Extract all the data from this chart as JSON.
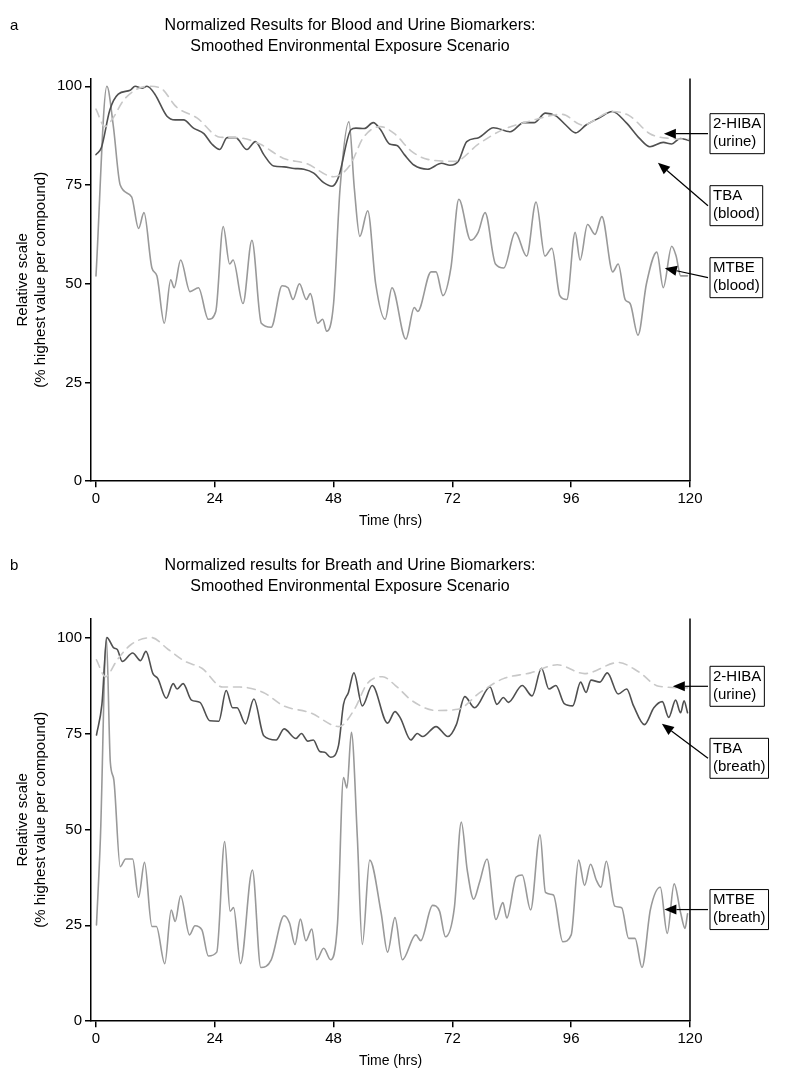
{
  "chart_data": [
    {
      "type": "line",
      "title": "Normalized Results for Blood and Urine Biomarkers:",
      "subtitle": "Smoothed Environmental Exposure Scenario",
      "xlabel": "Time (hrs)",
      "ylabel": "Relative scale\n(% highest value per compound)",
      "annotations": [
        "a"
      ],
      "xlim": [
        -1,
        120
      ],
      "xticks": [
        0,
        24,
        48,
        72,
        96,
        120
      ],
      "ylim": [
        0,
        102
      ],
      "yticks": [
        0,
        25,
        50,
        75,
        100
      ],
      "grid": false,
      "legend": false,
      "marker": "none",
      "series": [
        {
          "name": "2-HIBA (urine)",
          "color": "#c8c8c8",
          "line_style": "dashed",
          "x": [
            0,
            1.8,
            3.2,
            5.6,
            8.3,
            10.7,
            13,
            16.3,
            20.4,
            25.1,
            28.4,
            33.1,
            37.8,
            42.6,
            48,
            51.3,
            54,
            57.4,
            60.3,
            63.7,
            67,
            72.5,
            77.3,
            82,
            87.4,
            94.2,
            98.2,
            104.4,
            107.8,
            111.9,
            115.9,
            119.7
          ],
          "values": [
            94.2,
            89.8,
            91.5,
            96.5,
            99.3,
            100,
            99.6,
            94.7,
            92,
            87.1,
            87,
            85.4,
            81.8,
            80.4,
            77.1,
            80,
            87,
            89.8,
            88,
            83.6,
            81.5,
            81,
            85.4,
            88.9,
            91.1,
            92.9,
            90.2,
            93.6,
            92.5,
            88,
            86.8,
            86.6
          ]
        },
        {
          "name": "TBA (blood)",
          "color": "#505050",
          "line_style": "solid",
          "x": [
            0,
            1.1,
            2.8,
            4.5,
            6.9,
            7.9,
            9.3,
            10.3,
            11.9,
            14.3,
            16,
            17.7,
            19.7,
            21.8,
            23.4,
            25,
            26.5,
            28.2,
            30.5,
            32.2,
            33.9,
            35.9,
            38,
            40,
            42,
            44,
            46,
            47.7,
            49,
            51.5,
            52.5,
            54.2,
            56,
            57.5,
            59.3,
            60.8,
            62.3,
            64.3,
            67,
            69.8,
            71.5,
            73.2,
            74.9,
            77.3,
            80.3,
            83.7,
            86.4,
            88.5,
            90.8,
            92.9,
            94.9,
            96.9,
            99,
            101.7,
            104.3,
            107.1,
            109.8,
            111.9,
            114.6,
            116.3,
            118,
            119.7
          ],
          "values": [
            82.7,
            84.5,
            94,
            98,
            99,
            100,
            99.5,
            100,
            98,
            92.5,
            91.5,
            91.5,
            89.4,
            88,
            85.4,
            84,
            87,
            87,
            84,
            86,
            82.7,
            79.8,
            79.6,
            79.2,
            79,
            78,
            75.6,
            74.7,
            77,
            89,
            89.4,
            89.3,
            90.8,
            89,
            85.4,
            85,
            82.7,
            80,
            79,
            80.5,
            80,
            81,
            86,
            87,
            89.5,
            88.5,
            90.8,
            90.8,
            93.2,
            92.5,
            90.2,
            88.2,
            90.2,
            92,
            93.6,
            90.8,
            86.8,
            84.7,
            85.8,
            85.4,
            86.8,
            86.3
          ]
        },
        {
          "name": "MTBE (blood)",
          "color": "#999999",
          "line_style": "solid",
          "x": [
            0,
            2.2,
            3.5,
            4.9,
            7.2,
            8.6,
            9.7,
            11.3,
            12.3,
            13.8,
            15.1,
            15.8,
            17.1,
            19,
            20.7,
            22.7,
            24.2,
            25.7,
            27,
            27.7,
            29.7,
            31.5,
            33.4,
            35.4,
            37.6,
            38.8,
            39.8,
            41.1,
            42.5,
            43.3,
            44.8,
            45.8,
            46.6,
            48,
            49.3,
            51.1,
            52.2,
            53.3,
            54.9,
            56.5,
            58.4,
            59.8,
            62.6,
            64.3,
            65,
            67.7,
            68.7,
            70.1,
            71.7,
            73.3,
            75.7,
            77.2,
            78.6,
            80.7,
            82.4,
            84.7,
            87,
            88.9,
            90.7,
            92.1,
            93.7,
            95.1,
            96.8,
            97.8,
            99.3,
            100.8,
            102.2,
            104.4,
            105.5,
            106.9,
            107.9,
            109.5,
            111.2,
            113.3,
            114.6,
            116.3,
            117.2,
            118.1,
            119.5
          ],
          "values": [
            52,
            100,
            90,
            75,
            72,
            64,
            68,
            54,
            52,
            40,
            51,
            49,
            56,
            48,
            49,
            41,
            43,
            64.5,
            55,
            56,
            45,
            61,
            40,
            39,
            49.5,
            49,
            46,
            50,
            46,
            47.5,
            40,
            41,
            38,
            45,
            74,
            91,
            74,
            62,
            68.5,
            50,
            41,
            49,
            36,
            44,
            43,
            53,
            53,
            47,
            54,
            71.4,
            61,
            63,
            68,
            55,
            54,
            63,
            57,
            70.7,
            57,
            59,
            47,
            46,
            63,
            56,
            65,
            62.5,
            67,
            53,
            55,
            46,
            45,
            37,
            50,
            58,
            49,
            59.5,
            57,
            52,
            52
          ]
        }
      ]
    },
    {
      "type": "line",
      "title": "Normalized results for Breath and Urine Biomarkers:",
      "subtitle": "Smoothed Environmental Exposure Scenario",
      "xlabel": "Time (hrs)",
      "ylabel": "Relative scale\n(% highest value per compound)",
      "annotations": [
        "b"
      ],
      "xlim": [
        -1,
        120
      ],
      "xticks": [
        0,
        24,
        48,
        72,
        96,
        120
      ],
      "ylim": [
        0,
        105
      ],
      "yticks": [
        0,
        25,
        50,
        75,
        100
      ],
      "grid": false,
      "legend": false,
      "marker": "none",
      "series": [
        {
          "name": "2-HIBA (urine)",
          "color": "#c8c8c8",
          "line_style": "dashed",
          "x": [
            0.1,
            1.9,
            4.3,
            7.1,
            11.2,
            14.6,
            18,
            21.4,
            25.6,
            29,
            33.8,
            37.9,
            43.3,
            49.1,
            52.2,
            54.8,
            57.9,
            60.5,
            63.9,
            68.7,
            73.1,
            77.6,
            82.3,
            87.8,
            93.2,
            98.7,
            105.5,
            109.6,
            113.7,
            119.5
          ],
          "values": [
            94.2,
            89.8,
            94.2,
            98.2,
            100,
            96.9,
            93.8,
            92,
            87.1,
            87.1,
            85.7,
            82.2,
            80.4,
            76.8,
            81.3,
            88,
            89.8,
            87.5,
            83.5,
            81,
            81.3,
            85.7,
            89.3,
            90.8,
            92.9,
            90.6,
            93.5,
            91.1,
            87.3,
            86.9
          ]
        },
        {
          "name": "TBA (breath)",
          "color": "#505050",
          "line_style": "solid",
          "x": [
            0.1,
            1.2,
            2.2,
            3.6,
            4.3,
            5.3,
            7.4,
            9,
            10.1,
            11.5,
            12.5,
            14.2,
            15.6,
            16.4,
            17.6,
            19.3,
            21,
            23,
            24.8,
            26.3,
            27.6,
            28.5,
            30.2,
            31.9,
            33.9,
            36.4,
            38,
            40.4,
            41.5,
            42.8,
            43.9,
            45.2,
            46.2,
            47.4,
            49,
            50,
            51,
            52.1,
            53.8,
            55.8,
            58.9,
            60.4,
            61.5,
            63.6,
            64.9,
            66,
            68.7,
            71.1,
            72.8,
            74.5,
            76.5,
            79.6,
            81,
            82.3,
            83.3,
            86.1,
            88.1,
            90,
            91.5,
            92.9,
            94.6,
            96.3,
            97.9,
            99,
            100,
            101.8,
            103.3,
            105.5,
            107.2,
            108.6,
            110.8,
            112.7,
            114.4,
            115.7,
            117.1,
            118.1,
            118.8,
            119.5
          ],
          "values": [
            74.6,
            82.6,
            100,
            97.3,
            96.9,
            93.8,
            96,
            94,
            96.4,
            90.6,
            89.3,
            84.2,
            88,
            86.6,
            88,
            83.7,
            83.1,
            78.3,
            78.2,
            86.2,
            81.7,
            81.7,
            77.5,
            84,
            74.4,
            73.3,
            76.2,
            73.7,
            75,
            73,
            73.3,
            70.3,
            70.1,
            68.8,
            71.9,
            82.6,
            85.7,
            90.8,
            82.2,
            87.5,
            77.7,
            80.7,
            79,
            73.3,
            75,
            74.2,
            76.8,
            74.2,
            77.3,
            84.6,
            81.7,
            87.1,
            82.6,
            84.4,
            83.1,
            87.5,
            84.8,
            92,
            86.6,
            87.5,
            82.8,
            82.2,
            88.4,
            85.7,
            88.9,
            88.4,
            90.8,
            85.3,
            86.6,
            82.2,
            77.3,
            81.7,
            83.3,
            79.2,
            83.7,
            80.4,
            83.5,
            80.4
          ]
        },
        {
          "name": "MTBE (breath)",
          "color": "#999999",
          "line_style": "solid",
          "x": [
            0.1,
            0.9,
            2.1,
            2.9,
            3.6,
            4.9,
            6,
            7.4,
            8.6,
            9.8,
            11.3,
            12.2,
            13.9,
            15.2,
            16,
            17.1,
            18.9,
            20,
            21.4,
            22.7,
            24.4,
            26,
            27.1,
            27.8,
            29.2,
            31.6,
            33.3,
            35.4,
            38,
            39.1,
            40.2,
            41.3,
            42.4,
            43.6,
            44.6,
            46,
            47.4,
            48.8,
            50,
            50.7,
            51.6,
            52.8,
            53.8,
            55.3,
            57.6,
            58.9,
            60.4,
            61.9,
            64.6,
            65.6,
            68,
            69.4,
            70.6,
            72.4,
            73.8,
            75,
            76.3,
            77.5,
            79,
            80.8,
            82.2,
            83,
            84.9,
            86.1,
            87.8,
            89.7,
            90.8,
            92.4,
            94.3,
            96,
            97.5,
            98.7,
            99.9,
            101.1,
            102,
            103.1,
            104.8,
            106.2,
            107.6,
            108.9,
            110.3,
            112,
            114,
            115.4,
            116.8,
            118.1,
            119,
            119.5
          ],
          "values": [
            25.1,
            47.9,
            100,
            67.5,
            63,
            40.3,
            42.3,
            42.3,
            32.3,
            41.4,
            24.7,
            24.7,
            15,
            29,
            26,
            32.7,
            22.5,
            24.9,
            23.8,
            17,
            18,
            46.8,
            28.7,
            29.6,
            15,
            39.4,
            14,
            16,
            27.5,
            25.6,
            20,
            26.6,
            21,
            24,
            16,
            19,
            16,
            25.6,
            63.5,
            60.8,
            75.3,
            47.9,
            20,
            42,
            28.3,
            18,
            27,
            16,
            22.5,
            21,
            30.2,
            28.7,
            22,
            29.6,
            51.9,
            39.4,
            31.8,
            36.3,
            42.3,
            26.5,
            30.9,
            26.9,
            37.6,
            38.1,
            29,
            48.6,
            33.6,
            32.9,
            20.7,
            22.5,
            42,
            35.4,
            40.9,
            36.7,
            34.9,
            41.7,
            30,
            29.6,
            21.6,
            21.6,
            14,
            29.1,
            34.9,
            22.9,
            35.8,
            28.3,
            24.2,
            28
          ]
        }
      ]
    }
  ]
}
